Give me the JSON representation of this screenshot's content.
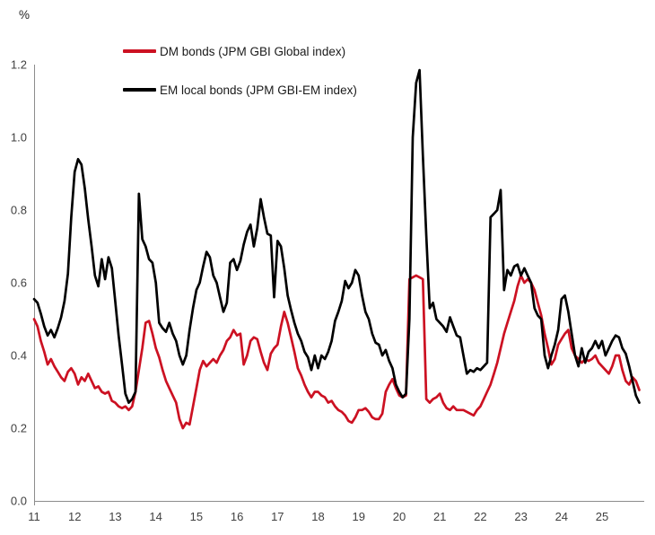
{
  "chart": {
    "unit_label": "%",
    "legend": [
      {
        "label": "DM bonds (JPM GBI Global index)",
        "color": "#cc1122"
      },
      {
        "label": "EM local bonds (JPM GBI-EM index)",
        "color": "#000000"
      }
    ]
  },
  "chart_data": {
    "type": "line",
    "title": "",
    "xlabel": "",
    "ylabel": "%",
    "grid": false,
    "legend_position": "top-left-inside",
    "xlim": [
      11.0,
      25.95
    ],
    "ylim": [
      0.0,
      1.2
    ],
    "x_ticks": [
      "11",
      "12",
      "13",
      "14",
      "15",
      "16",
      "17",
      "18",
      "19",
      "20",
      "21",
      "22",
      "23",
      "24",
      "25"
    ],
    "y_ticks": [
      "0.0",
      "0.2",
      "0.4",
      "0.6",
      "0.8",
      "1.0",
      "1.2"
    ],
    "x_unit": "year (2011-2025)",
    "series": [
      {
        "name": "DM bonds (JPM GBI Global index)",
        "color": "#cc1122",
        "x_start": 11.0,
        "x_step": 0.083333,
        "values": [
          0.5,
          0.48,
          0.44,
          0.41,
          0.375,
          0.39,
          0.37,
          0.355,
          0.34,
          0.33,
          0.355,
          0.365,
          0.35,
          0.32,
          0.34,
          0.33,
          0.35,
          0.33,
          0.31,
          0.315,
          0.3,
          0.295,
          0.3,
          0.275,
          0.27,
          0.26,
          0.255,
          0.26,
          0.25,
          0.26,
          0.3,
          0.36,
          0.42,
          0.49,
          0.495,
          0.46,
          0.42,
          0.395,
          0.36,
          0.33,
          0.31,
          0.29,
          0.27,
          0.225,
          0.2,
          0.215,
          0.21,
          0.26,
          0.31,
          0.36,
          0.385,
          0.37,
          0.38,
          0.39,
          0.38,
          0.4,
          0.415,
          0.44,
          0.45,
          0.47,
          0.455,
          0.46,
          0.375,
          0.4,
          0.44,
          0.45,
          0.445,
          0.41,
          0.38,
          0.36,
          0.405,
          0.42,
          0.43,
          0.48,
          0.52,
          0.49,
          0.45,
          0.41,
          0.365,
          0.345,
          0.32,
          0.3,
          0.285,
          0.3,
          0.3,
          0.29,
          0.285,
          0.27,
          0.275,
          0.26,
          0.25,
          0.245,
          0.235,
          0.22,
          0.215,
          0.23,
          0.25,
          0.25,
          0.255,
          0.245,
          0.23,
          0.225,
          0.225,
          0.24,
          0.3,
          0.32,
          0.335,
          0.31,
          0.29,
          0.285,
          0.29,
          0.61,
          0.615,
          0.62,
          0.615,
          0.61,
          0.28,
          0.27,
          0.28,
          0.285,
          0.295,
          0.27,
          0.255,
          0.25,
          0.26,
          0.25,
          0.25,
          0.25,
          0.245,
          0.24,
          0.235,
          0.25,
          0.26,
          0.28,
          0.3,
          0.32,
          0.35,
          0.38,
          0.42,
          0.46,
          0.49,
          0.52,
          0.55,
          0.59,
          0.62,
          0.6,
          0.61,
          0.6,
          0.58,
          0.545,
          0.51,
          0.46,
          0.42,
          0.375,
          0.39,
          0.43,
          0.445,
          0.46,
          0.47,
          0.42,
          0.4,
          0.39,
          0.38,
          0.39,
          0.385,
          0.39,
          0.4,
          0.38,
          0.37,
          0.36,
          0.35,
          0.37,
          0.4,
          0.4,
          0.36,
          0.33,
          0.32,
          0.34,
          0.33,
          0.305
        ]
      },
      {
        "name": "EM local bonds (JPM GBI-EM index)",
        "color": "#000000",
        "x_start": 11.0,
        "x_step": 0.083333,
        "values": [
          0.555,
          0.545,
          0.515,
          0.48,
          0.455,
          0.47,
          0.45,
          0.475,
          0.505,
          0.55,
          0.625,
          0.78,
          0.905,
          0.94,
          0.925,
          0.86,
          0.775,
          0.7,
          0.62,
          0.59,
          0.665,
          0.61,
          0.67,
          0.64,
          0.55,
          0.455,
          0.375,
          0.295,
          0.27,
          0.28,
          0.3,
          0.845,
          0.72,
          0.7,
          0.665,
          0.655,
          0.6,
          0.49,
          0.475,
          0.465,
          0.49,
          0.46,
          0.44,
          0.4,
          0.375,
          0.4,
          0.47,
          0.53,
          0.58,
          0.6,
          0.645,
          0.685,
          0.67,
          0.62,
          0.6,
          0.56,
          0.52,
          0.545,
          0.655,
          0.665,
          0.635,
          0.66,
          0.705,
          0.74,
          0.76,
          0.7,
          0.75,
          0.83,
          0.78,
          0.735,
          0.73,
          0.56,
          0.715,
          0.7,
          0.64,
          0.565,
          0.525,
          0.49,
          0.46,
          0.44,
          0.41,
          0.395,
          0.36,
          0.4,
          0.365,
          0.4,
          0.39,
          0.41,
          0.44,
          0.495,
          0.52,
          0.55,
          0.605,
          0.585,
          0.6,
          0.635,
          0.62,
          0.565,
          0.52,
          0.5,
          0.46,
          0.435,
          0.43,
          0.4,
          0.415,
          0.385,
          0.365,
          0.32,
          0.3,
          0.285,
          0.295,
          0.5,
          1.0,
          1.15,
          1.185,
          0.95,
          0.73,
          0.53,
          0.545,
          0.5,
          0.49,
          0.48,
          0.465,
          0.505,
          0.48,
          0.455,
          0.45,
          0.4,
          0.35,
          0.36,
          0.355,
          0.365,
          0.36,
          0.37,
          0.38,
          0.78,
          0.79,
          0.8,
          0.855,
          0.58,
          0.635,
          0.62,
          0.645,
          0.65,
          0.62,
          0.64,
          0.62,
          0.6,
          0.53,
          0.51,
          0.5,
          0.4,
          0.365,
          0.4,
          0.43,
          0.47,
          0.555,
          0.565,
          0.52,
          0.46,
          0.4,
          0.37,
          0.42,
          0.38,
          0.41,
          0.42,
          0.44,
          0.42,
          0.44,
          0.4,
          0.42,
          0.44,
          0.455,
          0.45,
          0.42,
          0.405,
          0.37,
          0.33,
          0.29,
          0.27
        ]
      }
    ]
  }
}
